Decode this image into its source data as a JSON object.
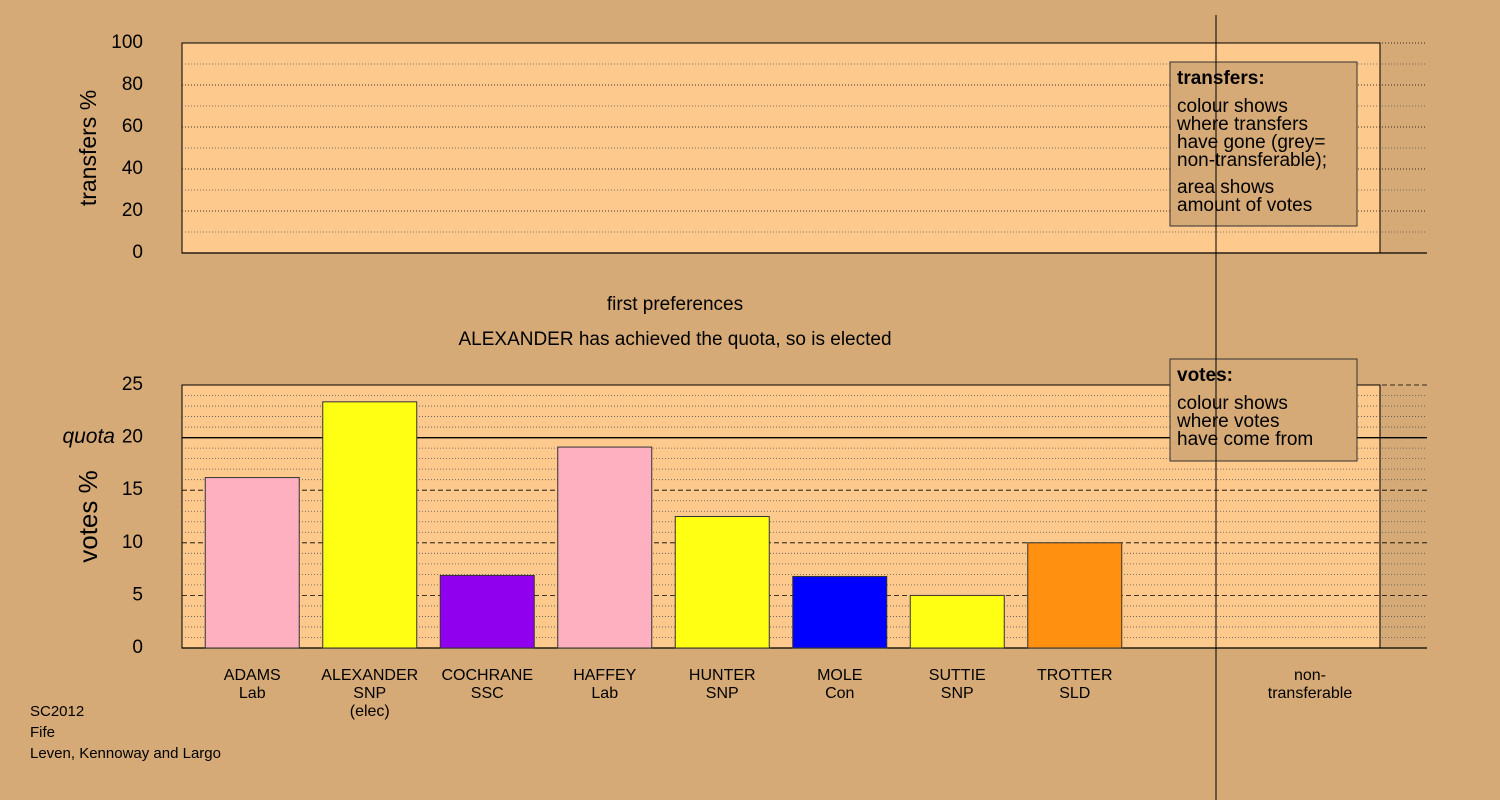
{
  "chart_data": [
    {
      "type": "bar",
      "ylabel": "transfers %",
      "ylim": [
        0,
        100
      ],
      "yticks": [
        0,
        20,
        40,
        60,
        80,
        100
      ],
      "minor_yticks": [
        10,
        30,
        50,
        70,
        90
      ],
      "legend": {
        "title": "transfers:",
        "paragraphs": [
          [
            "colour shows",
            "where transfers",
            "have gone (grey=",
            "non-transferable);"
          ],
          [
            "area shows",
            "amount of votes"
          ]
        ]
      }
    },
    {
      "type": "bar",
      "title": "first preferences",
      "annotation": "ALEXANDER has achieved the quota, so is elected",
      "ylabel": "votes %",
      "ylim": [
        0,
        25
      ],
      "yticks": [
        0,
        5,
        10,
        15,
        20,
        25
      ],
      "minor_yticks": [
        1,
        2,
        3,
        4,
        6,
        7,
        8,
        9,
        11,
        12,
        13,
        14,
        16,
        17,
        18,
        19,
        21,
        22,
        23,
        24
      ],
      "quota": 20,
      "quota_label": "quota",
      "categories": [
        [
          "ADAMS",
          "Lab"
        ],
        [
          "ALEXANDER",
          "SNP",
          "(elec)"
        ],
        [
          "COCHRANE",
          "SSC"
        ],
        [
          "HAFFEY",
          "Lab"
        ],
        [
          "HUNTER",
          "SNP"
        ],
        [
          "MOLE",
          "Con"
        ],
        [
          "SUTTIE",
          "SNP"
        ],
        [
          "TROTTER",
          "SLD"
        ]
      ],
      "values": [
        16.2,
        23.4,
        6.9,
        19.1,
        12.5,
        6.8,
        5.0,
        10.0
      ],
      "colors": [
        "#ffb0c0",
        "#ffff14",
        "#9000ee",
        "#ffb0c0",
        "#ffff14",
        "#0000ff",
        "#ffff14",
        "#ff9010"
      ],
      "extra_category": [
        "non-",
        "transferable"
      ],
      "legend": {
        "title": "votes:",
        "paragraphs": [
          [
            "colour shows",
            "where votes",
            "have come from"
          ]
        ]
      }
    }
  ],
  "footer": [
    "SC2012",
    "Fife",
    "Leven, Kennoway and Largo"
  ]
}
